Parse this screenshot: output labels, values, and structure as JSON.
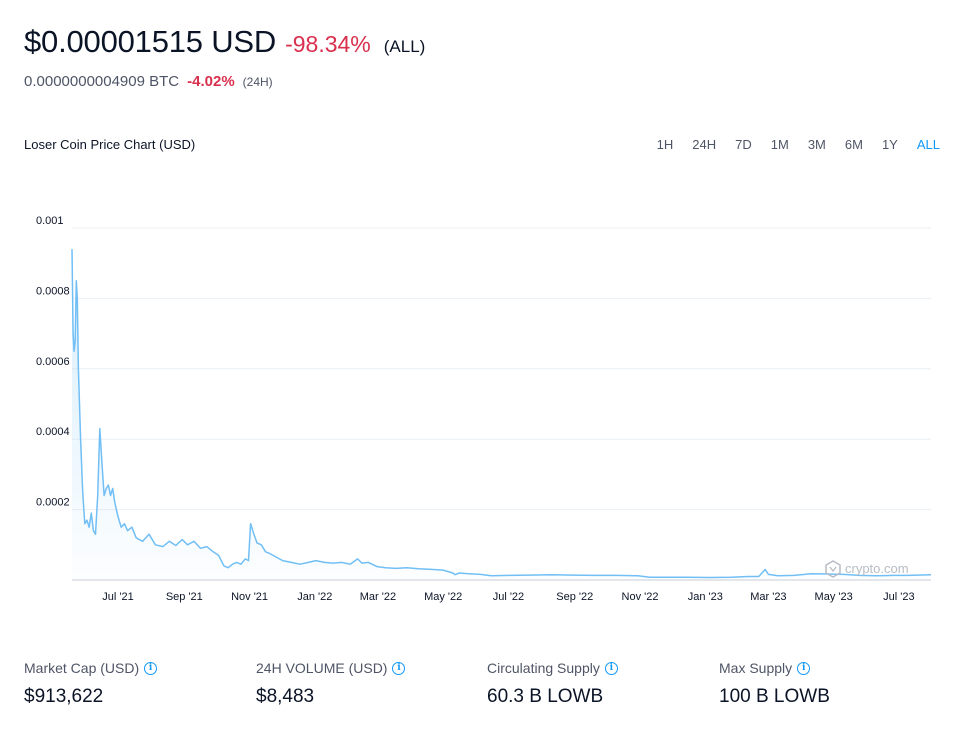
{
  "header": {
    "price_usd": "$0.00001515 USD",
    "change_all": "-98.34%",
    "change_all_period": "(ALL)",
    "price_btc": "0.0000000004909 BTC",
    "change_24h": "-4.02%",
    "change_24h_period": "(24H)"
  },
  "chart_title": "Loser Coin Price Chart (USD)",
  "range_tabs": [
    "1H",
    "24H",
    "7D",
    "1M",
    "3M",
    "6M",
    "1Y",
    "ALL"
  ],
  "active_range": "ALL",
  "watermark": "crypto.com",
  "colors": {
    "line": "#71bff5",
    "negative": "#d9304e",
    "accent": "#1199fa"
  },
  "chart_data": {
    "type": "area",
    "x_ticks": [
      "Jul '21",
      "Sep '21",
      "Nov '21",
      "Jan '22",
      "Mar '22",
      "May '22",
      "Jul '22",
      "Sep '22",
      "Nov '22",
      "Jan '23",
      "Mar '23",
      "May '23",
      "Jul '23"
    ],
    "y_ticks": [
      "0.0002",
      "0.0004",
      "0.0006",
      "0.0008",
      "0.001"
    ],
    "ylim": [
      0,
      0.001
    ],
    "xlim": [
      "2021-05-19",
      "2023-07-31"
    ],
    "grid": true,
    "series": [
      {
        "points": [
          [
            "2021-05-19",
            0.00094
          ],
          [
            "2021-05-20",
            0.0007
          ],
          [
            "2021-05-21",
            0.00065
          ],
          [
            "2021-05-22",
            0.00068
          ],
          [
            "2021-05-23",
            0.00085
          ],
          [
            "2021-05-24",
            0.0008
          ],
          [
            "2021-05-25",
            0.0006
          ],
          [
            "2021-05-27",
            0.0004
          ],
          [
            "2021-05-29",
            0.00025
          ],
          [
            "2021-05-31",
            0.00016
          ],
          [
            "2021-06-02",
            0.00017
          ],
          [
            "2021-06-04",
            0.00015
          ],
          [
            "2021-06-06",
            0.00019
          ],
          [
            "2021-06-08",
            0.00014
          ],
          [
            "2021-06-10",
            0.00013
          ],
          [
            "2021-06-12",
            0.00024
          ],
          [
            "2021-06-14",
            0.00043
          ],
          [
            "2021-06-16",
            0.00033
          ],
          [
            "2021-06-18",
            0.00024
          ],
          [
            "2021-06-20",
            0.00026
          ],
          [
            "2021-06-22",
            0.00027
          ],
          [
            "2021-06-24",
            0.00024
          ],
          [
            "2021-06-26",
            0.00026
          ],
          [
            "2021-06-28",
            0.00022
          ],
          [
            "2021-07-01",
            0.00018
          ],
          [
            "2021-07-04",
            0.00015
          ],
          [
            "2021-07-07",
            0.00016
          ],
          [
            "2021-07-10",
            0.00014
          ],
          [
            "2021-07-14",
            0.00015
          ],
          [
            "2021-07-18",
            0.00012
          ],
          [
            "2021-07-24",
            0.00011
          ],
          [
            "2021-07-30",
            0.00013
          ],
          [
            "2021-08-05",
            0.0001
          ],
          [
            "2021-08-12",
            9.5e-05
          ],
          [
            "2021-08-18",
            0.00011
          ],
          [
            "2021-08-24",
            9.8e-05
          ],
          [
            "2021-08-30",
            0.000115
          ],
          [
            "2021-09-04",
            0.0001
          ],
          [
            "2021-09-10",
            0.00011
          ],
          [
            "2021-09-16",
            9e-05
          ],
          [
            "2021-09-22",
            9.5e-05
          ],
          [
            "2021-09-28",
            8e-05
          ],
          [
            "2021-10-03",
            7e-05
          ],
          [
            "2021-10-08",
            4e-05
          ],
          [
            "2021-10-12",
            3.5e-05
          ],
          [
            "2021-10-16",
            4.5e-05
          ],
          [
            "2021-10-20",
            5e-05
          ],
          [
            "2021-10-24",
            4.5e-05
          ],
          [
            "2021-10-28",
            6e-05
          ],
          [
            "2021-10-31",
            5.5e-05
          ],
          [
            "2021-11-02",
            0.00016
          ],
          [
            "2021-11-05",
            0.00013
          ],
          [
            "2021-11-08",
            0.000105
          ],
          [
            "2021-11-12",
            0.0001
          ],
          [
            "2021-11-16",
            8e-05
          ],
          [
            "2021-11-20",
            7.5e-05
          ],
          [
            "2021-11-26",
            6.5e-05
          ],
          [
            "2021-12-02",
            5.5e-05
          ],
          [
            "2021-12-10",
            5e-05
          ],
          [
            "2021-12-18",
            4.5e-05
          ],
          [
            "2021-12-26",
            5e-05
          ],
          [
            "2022-01-02",
            5.5e-05
          ],
          [
            "2022-01-10",
            5e-05
          ],
          [
            "2022-01-18",
            4.8e-05
          ],
          [
            "2022-01-26",
            5e-05
          ],
          [
            "2022-02-03",
            4.5e-05
          ],
          [
            "2022-02-10",
            6e-05
          ],
          [
            "2022-02-14",
            4.8e-05
          ],
          [
            "2022-02-20",
            5e-05
          ],
          [
            "2022-02-28",
            3.8e-05
          ],
          [
            "2022-03-08",
            3.5e-05
          ],
          [
            "2022-03-18",
            3.3e-05
          ],
          [
            "2022-03-28",
            3.5e-05
          ],
          [
            "2022-04-08",
            3.2e-05
          ],
          [
            "2022-04-20",
            3e-05
          ],
          [
            "2022-05-01",
            2.8e-05
          ],
          [
            "2022-05-10",
            2e-05
          ],
          [
            "2022-05-12",
            1.5e-05
          ],
          [
            "2022-05-16",
            2e-05
          ],
          [
            "2022-05-25",
            1.8e-05
          ],
          [
            "2022-06-05",
            1.6e-05
          ],
          [
            "2022-06-15",
            1.2e-05
          ],
          [
            "2022-07-01",
            1.3e-05
          ],
          [
            "2022-07-20",
            1.4e-05
          ],
          [
            "2022-08-10",
            1.5e-05
          ],
          [
            "2022-08-30",
            1.4e-05
          ],
          [
            "2022-09-20",
            1.3e-05
          ],
          [
            "2022-10-10",
            1.3e-05
          ],
          [
            "2022-10-30",
            1.2e-05
          ],
          [
            "2022-11-10",
            8e-06
          ],
          [
            "2022-11-25",
            8e-06
          ],
          [
            "2022-12-15",
            8e-06
          ],
          [
            "2023-01-05",
            7e-06
          ],
          [
            "2023-01-25",
            8e-06
          ],
          [
            "2023-02-10",
            1e-05
          ],
          [
            "2023-02-20",
            1e-05
          ],
          [
            "2023-02-26",
            3e-05
          ],
          [
            "2023-03-01",
            1.6e-05
          ],
          [
            "2023-03-10",
            1.2e-05
          ],
          [
            "2023-03-25",
            1.3e-05
          ],
          [
            "2023-04-10",
            1.8e-05
          ],
          [
            "2023-04-25",
            1.7e-05
          ],
          [
            "2023-05-10",
            1.6e-05
          ],
          [
            "2023-05-25",
            1.3e-05
          ],
          [
            "2023-06-10",
            1.2e-05
          ],
          [
            "2023-06-25",
            1.3e-05
          ],
          [
            "2023-07-10",
            1.3e-05
          ],
          [
            "2023-07-31",
            1.5e-05
          ]
        ]
      }
    ]
  },
  "stats": [
    {
      "label": "Market Cap (USD)",
      "value": "$913,622"
    },
    {
      "label": "24H VOLUME (USD)",
      "value": "$8,483"
    },
    {
      "label": "Circulating Supply",
      "value": "60.3 B LOWB"
    },
    {
      "label": "Max Supply",
      "value": "100 B LOWB"
    }
  ]
}
